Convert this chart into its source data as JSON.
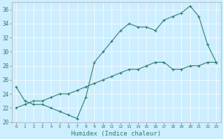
{
  "xlabel": "Humidex (Indice chaleur)",
  "background_color": "#cceeff",
  "line_color": "#2e7d6e",
  "xlim": [
    -0.5,
    23.5
  ],
  "ylim": [
    20,
    37
  ],
  "xticks": [
    0,
    1,
    2,
    3,
    4,
    5,
    6,
    7,
    8,
    9,
    10,
    11,
    12,
    13,
    14,
    15,
    16,
    17,
    18,
    19,
    20,
    21,
    22,
    23
  ],
  "yticks": [
    20,
    22,
    24,
    26,
    28,
    30,
    32,
    34,
    36
  ],
  "line1_x": [
    0,
    1,
    2,
    3,
    4,
    5,
    6,
    7,
    8,
    9,
    10,
    11,
    12,
    13,
    14,
    15,
    16,
    17,
    18,
    19,
    20,
    21,
    22,
    23
  ],
  "line1_y": [
    25.0,
    23.0,
    22.5,
    22.5,
    22.0,
    21.5,
    21.0,
    20.5,
    23.5,
    28.5,
    30.0,
    31.5,
    33.0,
    34.0,
    33.5,
    33.5,
    33.0,
    34.5,
    35.0,
    35.5,
    36.5,
    35.0,
    31.0,
    28.5
  ],
  "line2_x": [
    0,
    1,
    2,
    3,
    4,
    5,
    6,
    7,
    8,
    9,
    10,
    11,
    12,
    13,
    14,
    15,
    16,
    17,
    18,
    19,
    20,
    21,
    22,
    23
  ],
  "line2_y": [
    22.0,
    22.5,
    23.0,
    23.0,
    23.5,
    24.0,
    24.0,
    24.5,
    25.0,
    25.5,
    26.0,
    26.5,
    27.0,
    27.5,
    27.5,
    28.0,
    28.5,
    28.5,
    27.5,
    27.5,
    28.0,
    28.0,
    28.5,
    28.5
  ]
}
